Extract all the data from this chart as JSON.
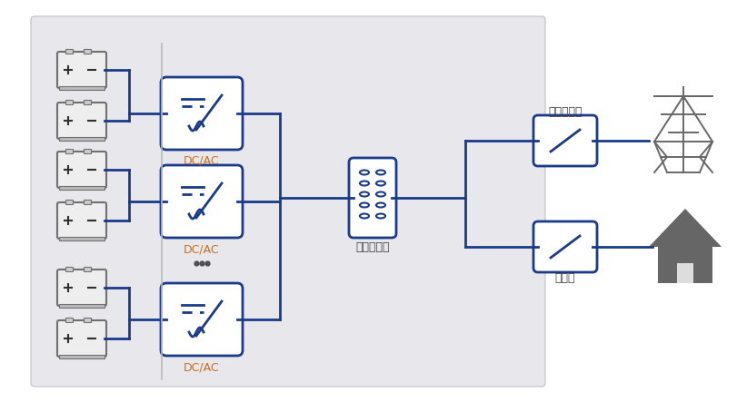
{
  "bg_color": "#e8e8ec",
  "outer_bg": "#ffffff",
  "line_color": "#1a3a8a",
  "text_color_orange": "#c87020",
  "text_color_dark": "#404040",
  "battery_stroke": "#707070",
  "labels": {
    "dcac": "DC/AC",
    "transformer": "隔离变压器",
    "grid_controller": "电网控制器",
    "breaker": "断路器"
  },
  "figsize": [
    8.11,
    4.43
  ],
  "dpi": 100
}
